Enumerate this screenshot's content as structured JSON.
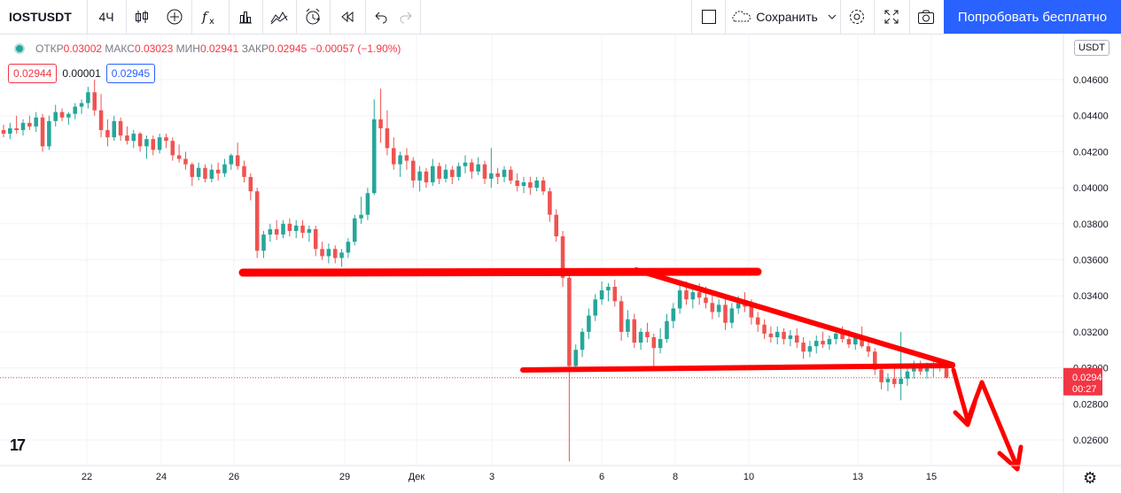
{
  "toolbar": {
    "symbol": "IOSTUSDT",
    "interval": "4Ч",
    "save_label": "Сохранить",
    "try_label": "Попробовать бесплатно",
    "icons": [
      "candles-icon",
      "add-indicator-icon",
      "fx-icon",
      "bars-compare-icon",
      "indicators-icon",
      "alert-icon",
      "replay-icon",
      "undo-icon",
      "redo-icon",
      "layout-icon",
      "cloud-icon",
      "chevron-down-icon",
      "settings-icon",
      "fullscreen-icon",
      "camera-icon"
    ]
  },
  "legend": {
    "open_label": "ОТКР",
    "open": "0.03002",
    "high_label": "МАКС",
    "high": "0.03023",
    "low_label": "МИН",
    "low": "0.02941",
    "close_label": "ЗАКР",
    "close": "0.02945",
    "change": "−0.00057 (−1.90%)",
    "bid": "0.02944",
    "spread": "0.00001",
    "ask": "0.02945"
  },
  "price_scale": {
    "currency": "USDT",
    "last_price": "0.02945",
    "countdown": "00:27"
  },
  "chart_data": {
    "type": "candlestick",
    "symbol": "IOSTUSDT",
    "interval": "4h",
    "colors": {
      "up": "#26a69a",
      "down": "#ef5350",
      "annotation": "#ff0000",
      "last_price": "#f23645"
    },
    "ylim": [
      0.0248,
      0.047
    ],
    "y_ticks": [
      "0.02600",
      "0.02800",
      "0.03000",
      "0.03200",
      "0.03400",
      "0.03600",
      "0.03800",
      "0.04000",
      "0.04200",
      "0.04400",
      "0.04600"
    ],
    "x_ticks": [
      "22",
      "24",
      "26",
      "29",
      "Дек",
      "3",
      "6",
      "8",
      "10",
      "13",
      "15"
    ],
    "candles": [
      [
        0.0432,
        0.0435,
        0.0428,
        0.043
      ],
      [
        0.043,
        0.0436,
        0.0427,
        0.0433
      ],
      [
        0.0433,
        0.044,
        0.043,
        0.0432
      ],
      [
        0.0432,
        0.0438,
        0.0429,
        0.0436
      ],
      [
        0.0436,
        0.044,
        0.0432,
        0.0434
      ],
      [
        0.0434,
        0.0442,
        0.0431,
        0.0439
      ],
      [
        0.0439,
        0.0441,
        0.042,
        0.0423
      ],
      [
        0.0423,
        0.044,
        0.0421,
        0.0437
      ],
      [
        0.0437,
        0.0446,
        0.0434,
        0.0442
      ],
      [
        0.0442,
        0.0444,
        0.0437,
        0.0439
      ],
      [
        0.0439,
        0.0442,
        0.0435,
        0.0441
      ],
      [
        0.0441,
        0.0447,
        0.0438,
        0.0445
      ],
      [
        0.0445,
        0.0449,
        0.0441,
        0.0447
      ],
      [
        0.0447,
        0.0456,
        0.0444,
        0.0453
      ],
      [
        0.0453,
        0.046,
        0.044,
        0.0443
      ],
      [
        0.0443,
        0.0452,
        0.0428,
        0.0432
      ],
      [
        0.0432,
        0.0438,
        0.0423,
        0.0428
      ],
      [
        0.0428,
        0.044,
        0.0426,
        0.0437
      ],
      [
        0.0437,
        0.0439,
        0.0426,
        0.0429
      ],
      [
        0.0429,
        0.0434,
        0.0424,
        0.0426
      ],
      [
        0.0426,
        0.0432,
        0.0422,
        0.043
      ],
      [
        0.043,
        0.0431,
        0.042,
        0.0423
      ],
      [
        0.0423,
        0.0429,
        0.0416,
        0.0427
      ],
      [
        0.0427,
        0.0429,
        0.0418,
        0.0421
      ],
      [
        0.0421,
        0.043,
        0.0419,
        0.0428
      ],
      [
        0.0428,
        0.043,
        0.0422,
        0.0426
      ],
      [
        0.0426,
        0.0428,
        0.0415,
        0.0418
      ],
      [
        0.0418,
        0.0424,
        0.0414,
        0.0416
      ],
      [
        0.0416,
        0.042,
        0.041,
        0.0413
      ],
      [
        0.0413,
        0.0414,
        0.0401,
        0.0406
      ],
      [
        0.0406,
        0.0414,
        0.0404,
        0.0411
      ],
      [
        0.0411,
        0.0413,
        0.0403,
        0.0405
      ],
      [
        0.0405,
        0.0413,
        0.0403,
        0.041
      ],
      [
        0.041,
        0.0414,
        0.0404,
        0.0408
      ],
      [
        0.0408,
        0.0416,
        0.0406,
        0.0413
      ],
      [
        0.0413,
        0.0419,
        0.041,
        0.0418
      ],
      [
        0.0418,
        0.0425,
        0.041,
        0.0412
      ],
      [
        0.0412,
        0.0415,
        0.0403,
        0.0406
      ],
      [
        0.0406,
        0.0408,
        0.0393,
        0.0398
      ],
      [
        0.0398,
        0.04,
        0.0361,
        0.0365
      ],
      [
        0.0365,
        0.0376,
        0.0361,
        0.0374
      ],
      [
        0.0374,
        0.038,
        0.037,
        0.0377
      ],
      [
        0.0377,
        0.0382,
        0.0371,
        0.0374
      ],
      [
        0.0374,
        0.0382,
        0.0372,
        0.038
      ],
      [
        0.038,
        0.0383,
        0.0373,
        0.0376
      ],
      [
        0.0376,
        0.0382,
        0.0372,
        0.0379
      ],
      [
        0.0379,
        0.0382,
        0.0372,
        0.0375
      ],
      [
        0.0375,
        0.0379,
        0.037,
        0.0377
      ],
      [
        0.0377,
        0.0379,
        0.0362,
        0.0366
      ],
      [
        0.0366,
        0.037,
        0.036,
        0.0362
      ],
      [
        0.0362,
        0.0369,
        0.0358,
        0.0366
      ],
      [
        0.0366,
        0.0368,
        0.0358,
        0.0361
      ],
      [
        0.0361,
        0.0366,
        0.0356,
        0.0364
      ],
      [
        0.0364,
        0.0372,
        0.0361,
        0.037
      ],
      [
        0.037,
        0.0385,
        0.0368,
        0.0383
      ],
      [
        0.0383,
        0.0395,
        0.038,
        0.0385
      ],
      [
        0.0385,
        0.04,
        0.0382,
        0.0397
      ],
      [
        0.0397,
        0.0449,
        0.0396,
        0.0438
      ],
      [
        0.0438,
        0.0455,
        0.0425,
        0.0433
      ],
      [
        0.0433,
        0.0443,
        0.0418,
        0.0422
      ],
      [
        0.0422,
        0.0428,
        0.041,
        0.0413
      ],
      [
        0.0413,
        0.042,
        0.0406,
        0.0418
      ],
      [
        0.0418,
        0.0422,
        0.041,
        0.0415
      ],
      [
        0.0415,
        0.0417,
        0.04,
        0.0404
      ],
      [
        0.0404,
        0.0412,
        0.0398,
        0.0409
      ],
      [
        0.0409,
        0.0411,
        0.04,
        0.0403
      ],
      [
        0.0403,
        0.0416,
        0.0401,
        0.0412
      ],
      [
        0.0412,
        0.0414,
        0.0402,
        0.0405
      ],
      [
        0.0405,
        0.0413,
        0.0403,
        0.041
      ],
      [
        0.041,
        0.0412,
        0.0402,
        0.0406
      ],
      [
        0.0406,
        0.0414,
        0.0404,
        0.0412
      ],
      [
        0.0412,
        0.0418,
        0.0408,
        0.0414
      ],
      [
        0.0414,
        0.0416,
        0.0405,
        0.0409
      ],
      [
        0.0409,
        0.0417,
        0.0407,
        0.0413
      ],
      [
        0.0413,
        0.0415,
        0.0402,
        0.0405
      ],
      [
        0.0405,
        0.0422,
        0.04,
        0.0408
      ],
      [
        0.0408,
        0.0411,
        0.0402,
        0.0406
      ],
      [
        0.0406,
        0.0412,
        0.0403,
        0.041
      ],
      [
        0.041,
        0.0412,
        0.0402,
        0.0404
      ],
      [
        0.0404,
        0.0408,
        0.0398,
        0.0401
      ],
      [
        0.0401,
        0.0406,
        0.0397,
        0.0403
      ],
      [
        0.0403,
        0.0406,
        0.0396,
        0.04
      ],
      [
        0.04,
        0.0406,
        0.0398,
        0.0404
      ],
      [
        0.0404,
        0.0406,
        0.0396,
        0.0398
      ],
      [
        0.0398,
        0.04,
        0.0381,
        0.0385
      ],
      [
        0.0385,
        0.0388,
        0.037,
        0.0373
      ],
      [
        0.0373,
        0.0376,
        0.0345,
        0.035
      ],
      [
        0.035,
        0.0352,
        0.0248,
        0.0301
      ],
      [
        0.0301,
        0.0313,
        0.0298,
        0.031
      ],
      [
        0.031,
        0.0322,
        0.0306,
        0.032
      ],
      [
        0.032,
        0.0333,
        0.0316,
        0.0329
      ],
      [
        0.0329,
        0.0341,
        0.0326,
        0.0338
      ],
      [
        0.0338,
        0.0348,
        0.0335,
        0.0343
      ],
      [
        0.0343,
        0.0347,
        0.0337,
        0.0345
      ],
      [
        0.0345,
        0.0349,
        0.0334,
        0.0337
      ],
      [
        0.0337,
        0.034,
        0.0315,
        0.032
      ],
      [
        0.032,
        0.0332,
        0.0317,
        0.0327
      ],
      [
        0.0327,
        0.033,
        0.0311,
        0.0314
      ],
      [
        0.0314,
        0.0322,
        0.031,
        0.032
      ],
      [
        0.032,
        0.0325,
        0.0314,
        0.0317
      ],
      [
        0.0317,
        0.0319,
        0.0301,
        0.0311
      ],
      [
        0.0311,
        0.0322,
        0.0308,
        0.0316
      ],
      [
        0.0316,
        0.033,
        0.0314,
        0.0326
      ],
      [
        0.0326,
        0.0336,
        0.0322,
        0.0333
      ],
      [
        0.0333,
        0.0346,
        0.033,
        0.0343
      ],
      [
        0.0343,
        0.0348,
        0.0335,
        0.0338
      ],
      [
        0.0338,
        0.0346,
        0.0333,
        0.0342
      ],
      [
        0.0342,
        0.0347,
        0.0335,
        0.0339
      ],
      [
        0.0339,
        0.0345,
        0.0333,
        0.0336
      ],
      [
        0.0336,
        0.0342,
        0.0327,
        0.0331
      ],
      [
        0.0331,
        0.0338,
        0.0328,
        0.0335
      ],
      [
        0.0335,
        0.034,
        0.0321,
        0.0325
      ],
      [
        0.0325,
        0.0336,
        0.0322,
        0.0333
      ],
      [
        0.0333,
        0.034,
        0.033,
        0.0336
      ],
      [
        0.0336,
        0.0342,
        0.0331,
        0.0334
      ],
      [
        0.0334,
        0.0338,
        0.0324,
        0.0328
      ],
      [
        0.0328,
        0.0331,
        0.032,
        0.0324
      ],
      [
        0.0324,
        0.0327,
        0.0316,
        0.0319
      ],
      [
        0.0319,
        0.0323,
        0.0314,
        0.0317
      ],
      [
        0.0317,
        0.0323,
        0.0313,
        0.032
      ],
      [
        0.032,
        0.0322,
        0.0313,
        0.0316
      ],
      [
        0.0316,
        0.0321,
        0.0312,
        0.0318
      ],
      [
        0.0318,
        0.0322,
        0.0311,
        0.0314
      ],
      [
        0.0314,
        0.0317,
        0.0305,
        0.0309
      ],
      [
        0.0309,
        0.0315,
        0.0306,
        0.0312
      ],
      [
        0.0312,
        0.0318,
        0.0308,
        0.0315
      ],
      [
        0.0315,
        0.032,
        0.0311,
        0.0313
      ],
      [
        0.0313,
        0.0318,
        0.031,
        0.0316
      ],
      [
        0.0316,
        0.0322,
        0.0313,
        0.0319
      ],
      [
        0.0319,
        0.0323,
        0.0314,
        0.0316
      ],
      [
        0.0316,
        0.0321,
        0.0311,
        0.0313
      ],
      [
        0.0313,
        0.0319,
        0.031,
        0.0317
      ],
      [
        0.0317,
        0.0323,
        0.0311,
        0.0312
      ],
      [
        0.0312,
        0.0316,
        0.0306,
        0.0309
      ],
      [
        0.0309,
        0.0311,
        0.0296,
        0.0299
      ],
      [
        0.0299,
        0.0302,
        0.0288,
        0.0292
      ],
      [
        0.0292,
        0.0297,
        0.0287,
        0.0294
      ],
      [
        0.0294,
        0.03,
        0.0289,
        0.0291
      ],
      [
        0.0291,
        0.032,
        0.0282,
        0.0294
      ],
      [
        0.0294,
        0.0301,
        0.029,
        0.0298
      ],
      [
        0.0298,
        0.0304,
        0.0294,
        0.03
      ],
      [
        0.03,
        0.0304,
        0.0296,
        0.0298
      ],
      [
        0.0298,
        0.0303,
        0.0294,
        0.03
      ],
      [
        0.03,
        0.0304,
        0.0295,
        0.0302
      ],
      [
        0.0302,
        0.0305,
        0.0298,
        0.03
      ],
      [
        0.03,
        0.03023,
        0.02941,
        0.02945
      ]
    ]
  }
}
